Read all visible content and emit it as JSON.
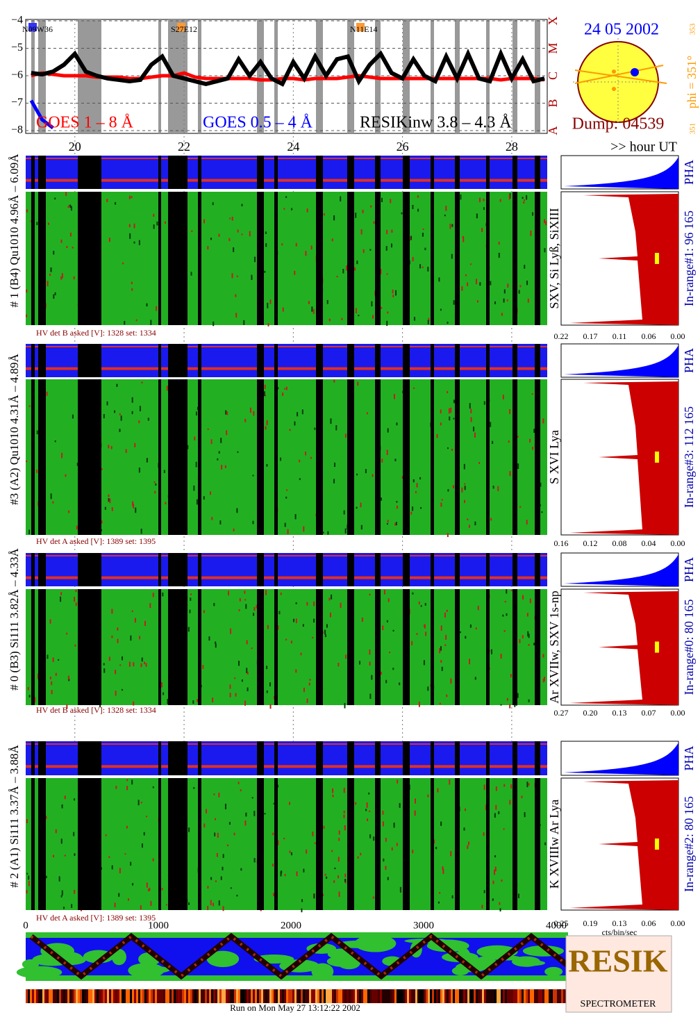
{
  "chart_data": {
    "type": "line",
    "x": [
      19.2,
      19.4,
      19.6,
      19.8,
      20.0,
      20.2,
      20.4,
      20.6,
      20.8,
      21.0,
      21.2,
      21.4,
      21.6,
      21.8,
      22.0,
      22.2,
      22.4,
      22.6,
      22.8,
      23.0,
      23.2,
      23.4,
      23.6,
      23.8,
      24.0,
      24.2,
      24.4,
      24.6,
      24.8,
      25.0,
      25.2,
      25.4,
      25.6,
      25.8,
      26.0,
      26.2,
      26.4,
      26.6,
      26.8,
      27.0,
      27.2,
      27.4,
      27.6,
      27.8,
      28.0,
      28.2,
      28.4,
      28.6
    ],
    "series": [
      {
        "name": "GOES 1 – 8 Å",
        "color": "#ff0000",
        "values": [
          -6.0,
          -5.9,
          -5.95,
          -6.0,
          -6.0,
          -6.0,
          -6.05,
          -6.05,
          -6.05,
          -6.1,
          -6.1,
          -6.05,
          -6.0,
          -6.0,
          -5.9,
          -6.05,
          -6.1,
          -6.1,
          -6.1,
          -6.1,
          -6.1,
          -6.15,
          -6.15,
          -6.1,
          -6.1,
          -6.15,
          -6.1,
          -6.1,
          -6.1,
          -6.05,
          -6.0,
          -6.05,
          -6.1,
          -6.1,
          -6.1,
          -6.1,
          -6.1,
          -6.1,
          -6.1,
          -6.1,
          -6.1,
          -6.1,
          -6.1,
          -6.15,
          -6.1,
          -6.1,
          -6.1,
          -6.15
        ]
      },
      {
        "name": "GOES 0.5 – 4 Å",
        "color": "#0000ff",
        "values": [
          -6.9,
          -7.6,
          -7.9,
          null,
          null,
          null,
          null,
          null,
          null,
          null,
          null,
          null,
          null,
          null,
          null,
          null,
          null,
          null,
          null,
          null,
          null,
          null,
          null,
          null,
          null,
          null,
          null,
          null,
          null,
          null,
          null,
          null,
          null,
          null,
          null,
          null,
          null,
          null,
          null,
          null,
          null,
          null,
          null,
          null,
          null,
          null,
          null,
          null
        ]
      },
      {
        "name": "RESIKinw 3.8 – 4.3 Å",
        "color": "#000000",
        "values": [
          -5.9,
          -5.95,
          -5.85,
          -5.6,
          -5.2,
          -5.85,
          -6.0,
          -6.1,
          -6.15,
          -6.2,
          -6.15,
          -5.6,
          -5.3,
          -6.0,
          -6.1,
          -6.2,
          -6.3,
          -6.2,
          -6.1,
          -5.4,
          -6.0,
          -5.5,
          -6.1,
          -6.3,
          -5.5,
          -6.1,
          -5.3,
          -6.0,
          -5.4,
          -5.3,
          -6.2,
          -5.6,
          -5.2,
          -5.9,
          -6.1,
          -5.4,
          -6.0,
          -6.2,
          -5.3,
          -6.1,
          -5.2,
          -6.1,
          -6.2,
          -5.2,
          -6.1,
          -5.4,
          -6.2,
          -6.1
        ]
      }
    ],
    "xlim": [
      19.1,
      28.65
    ],
    "xticks": [
      20,
      22,
      24,
      26,
      28
    ],
    "xlabel": ">> hour UT",
    "ylim": [
      -8.1,
      -3.95
    ],
    "yticks": [
      {
        "value": -4,
        "label": "−4"
      },
      {
        "value": -5,
        "label": "−5"
      },
      {
        "value": -6,
        "label": "−6"
      },
      {
        "value": -7,
        "label": "−7"
      },
      {
        "value": -8,
        "label": "−8"
      }
    ],
    "flare_classes": [
      "X",
      "M",
      "C",
      "B",
      "A"
    ],
    "regions": [
      "N09W36",
      "S27E12",
      "N11E14"
    ],
    "grid": true
  },
  "sun": {
    "date": "24 05 2002",
    "dump": "Dump: 04539",
    "phi": "phi = 351°",
    "phi_top": "353",
    "phi_bottom": "351"
  },
  "panels": [
    {
      "label": "# 1 (B4) Qu1010 4.96Å – 6.09Å",
      "hv": "HV det B asked [V]:  1328 set:  1334",
      "lines": "SXV, Si Lyß, SiXIII",
      "pha": "PHA",
      "in_range": "In-range#1:   96 165",
      "ticks": [
        "0.22",
        "0.17",
        "0.11",
        "0.06",
        "0.00"
      ]
    },
    {
      "label": "#3 (A2) Qu1010  4.31Å – 4.89Å",
      "hv": "HV det A asked [V]:  1389 set:  1395",
      "lines": "S XVI Lya",
      "pha": "PHA",
      "in_range": "In-range#3:  112 165",
      "ticks": [
        "0.16",
        "0.12",
        "0.08",
        "0.04",
        "0.00"
      ]
    },
    {
      "label": "# 0 (B3) Si111  3.82Å – 4.33Å",
      "hv": "HV det B asked [V]:  1328 set:  1334",
      "lines": "Ar XVIIw,  SXV 1s-np",
      "pha": "PHA",
      "in_range": "In-range#0:   80 165",
      "ticks": [
        "0.27",
        "0.20",
        "0.13",
        "0.07",
        "0.00"
      ]
    },
    {
      "label": "# 2 (A1) Si111  3.37Å – 3.88Å",
      "hv": "HV det A asked [V]:  1389 set:  1395",
      "lines": "K XVIIIw  Ar Lya",
      "pha": "PHA",
      "in_range": "In-range#2:   80 165",
      "ticks": [
        "0.25",
        "0.19",
        "0.13",
        "0.06",
        "0.00"
      ]
    }
  ],
  "spectrum_unit": "cts/bin/sec",
  "bottom_axis": [
    "0",
    "1000",
    "2000",
    "3000",
    "4000"
  ],
  "footer": "Run on Mon May 27 13:12:22 2002",
  "logo": {
    "main": "RESIK",
    "sub": "SPECTROMETER"
  }
}
